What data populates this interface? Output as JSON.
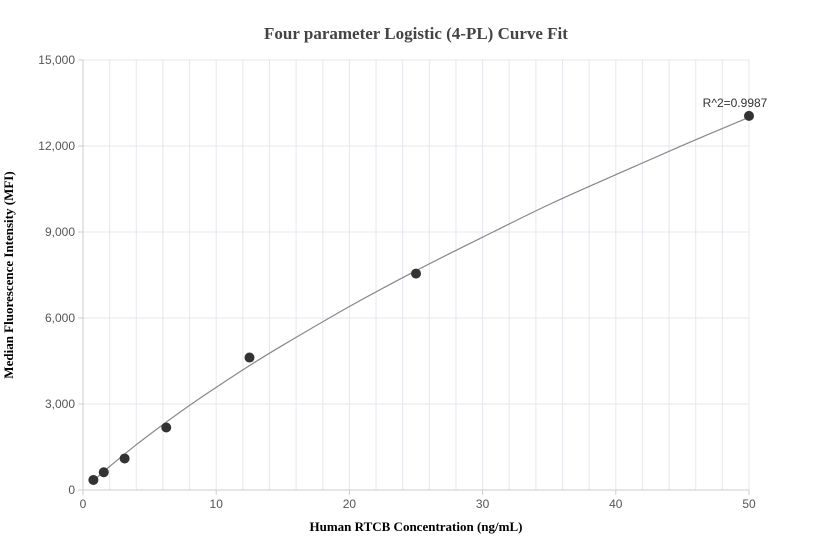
{
  "chart_data": {
    "type": "scatter",
    "title": "Four parameter Logistic (4-PL) Curve Fit",
    "xlabel": "Human RTCB Concentration (ng/mL)",
    "ylabel": "Median Fluorescence Intensity (MFI)",
    "xlim": [
      0,
      50
    ],
    "ylim": [
      0,
      15000
    ],
    "x_ticks": [
      0,
      10,
      20,
      30,
      40,
      50
    ],
    "x_tick_labels": [
      "0",
      "10",
      "20",
      "30",
      "40",
      "50"
    ],
    "y_ticks": [
      0,
      3000,
      6000,
      9000,
      12000,
      15000
    ],
    "y_tick_labels": [
      "0",
      "3,000",
      "6,000",
      "9,000",
      "12,000",
      "15,000"
    ],
    "grid": true,
    "annotation": "R^2=0.9987",
    "points": {
      "x": [
        0.78,
        1.56,
        3.125,
        6.25,
        12.5,
        25,
        50
      ],
      "y": [
        350,
        620,
        1100,
        2180,
        4620,
        7550,
        13050
      ]
    },
    "fit_curve": {
      "type": "4-PL",
      "x": [
        0.78,
        2,
        4,
        6,
        8,
        10,
        12.5,
        15,
        20,
        25,
        30,
        35,
        40,
        45,
        50
      ],
      "y": [
        320,
        820,
        1580,
        2280,
        2950,
        3580,
        4340,
        5050,
        6400,
        7650,
        8820,
        9960,
        11000,
        12020,
        13000
      ]
    },
    "colors": {
      "points": "#333333",
      "curve": "#888888",
      "grid": "#e6e6ef",
      "axis": "#cccccc"
    }
  }
}
